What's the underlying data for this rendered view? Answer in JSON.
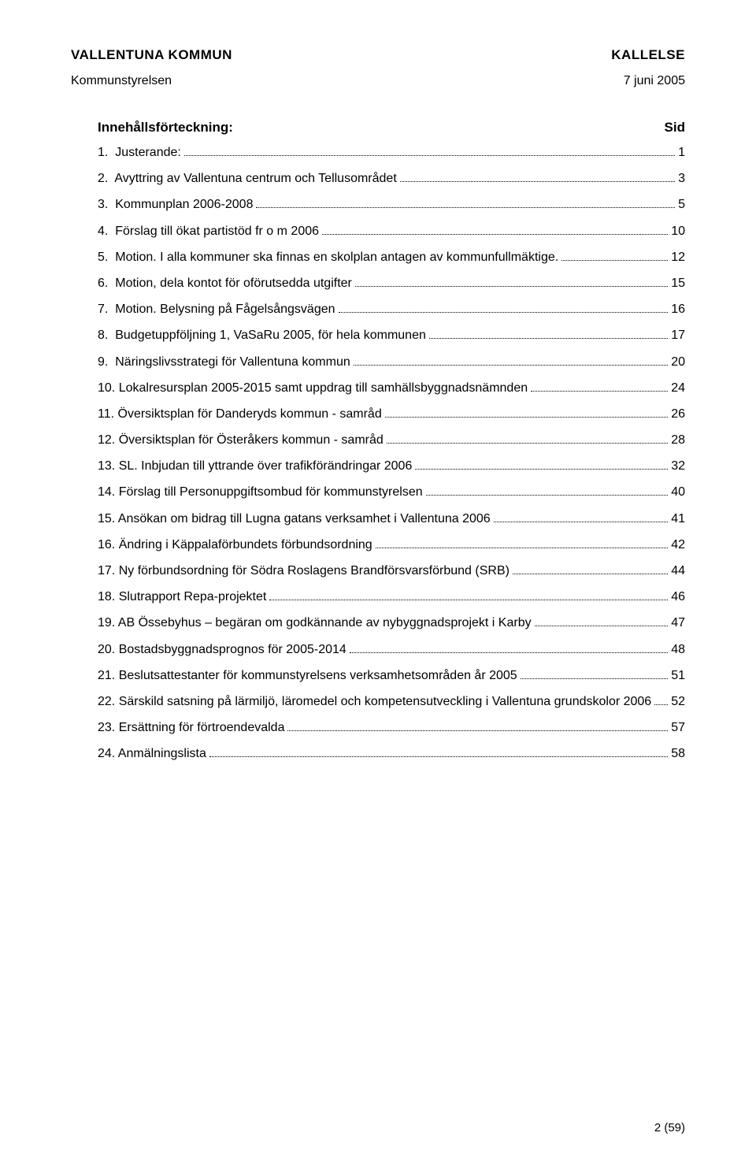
{
  "header": {
    "org": "VALLENTUNA KOMMUN",
    "docType": "KALLELSE",
    "committee": "Kommunstyrelsen",
    "date": "7 juni 2005"
  },
  "tocTitle": "Innehållsförteckning:",
  "tocPageLabel": "Sid",
  "toc": [
    {
      "label": "1.  Justerande:",
      "page": "1"
    },
    {
      "label": "2.  Avyttring av Vallentuna centrum och Tellusområdet",
      "page": "3"
    },
    {
      "label": "3.  Kommunplan 2006-2008",
      "page": "5"
    },
    {
      "label": "4.  Förslag till ökat partistöd fr o m 2006",
      "page": "10"
    },
    {
      "label": "5.  Motion. I alla kommuner ska finnas en skolplan antagen av kommunfullmäktige.",
      "page": "12"
    },
    {
      "label": "6.  Motion, dela kontot för oförutsedda utgifter",
      "page": "15"
    },
    {
      "label": "7.  Motion. Belysning på Fågelsångsvägen",
      "page": "16"
    },
    {
      "label": "8.  Budgetuppföljning 1, VaSaRu 2005, för hela kommunen",
      "page": "17"
    },
    {
      "label": "9.  Näringslivsstrategi för Vallentuna kommun",
      "page": "20"
    },
    {
      "label": "10. Lokalresursplan 2005-2015 samt uppdrag till samhällsbyggnadsnämnden",
      "page": "24"
    },
    {
      "label": "11. Översiktsplan för Danderyds kommun - samråd",
      "page": "26"
    },
    {
      "label": "12. Översiktsplan för Österåkers kommun - samråd",
      "page": "28"
    },
    {
      "label": "13. SL. Inbjudan till yttrande över trafikförändringar 2006",
      "page": "32"
    },
    {
      "label": "14. Förslag till Personuppgiftsombud för kommunstyrelsen",
      "page": "40"
    },
    {
      "label": "15. Ansökan om bidrag till Lugna gatans verksamhet i Vallentuna 2006",
      "page": "41"
    },
    {
      "label": "16. Ändring i Käppalaförbundets förbundsordning",
      "page": "42"
    },
    {
      "label": "17. Ny förbundsordning för Södra Roslagens Brandförsvarsförbund (SRB)",
      "page": "44"
    },
    {
      "label": "18. Slutrapport Repa-projektet",
      "page": "46"
    },
    {
      "label": "19. AB Össebyhus – begäran om godkännande av nybyggnadsprojekt i Karby",
      "page": "47"
    },
    {
      "label": "20. Bostadsbyggnadsprognos för 2005-2014",
      "page": "48"
    },
    {
      "label": "21. Beslutsattestanter för kommunstyrelsens verksamhetsområden år 2005",
      "page": "51"
    },
    {
      "label": "22. Särskild satsning på lärmiljö, läromedel och kompetensutveckling i Vallentuna grundskolor 2006",
      "page": "52"
    },
    {
      "label": "23. Ersättning för förtroendevalda",
      "page": "57"
    },
    {
      "label": "24. Anmälningslista",
      "page": "58"
    }
  ],
  "footer": "2 (59)"
}
